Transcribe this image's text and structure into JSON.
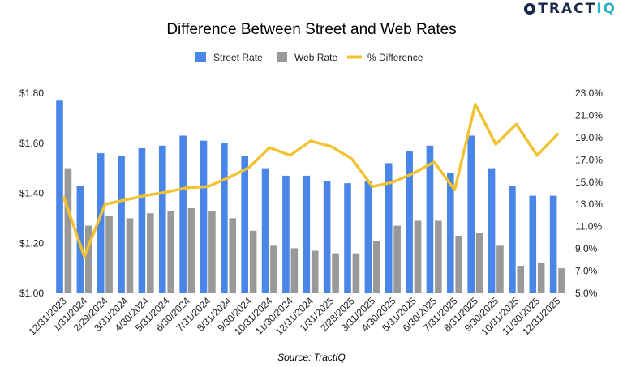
{
  "brand": {
    "name_main": "TRACT",
    "name_accent": "IQ",
    "icon": "tractiq-logo-icon",
    "main_color": "#1b2a4a",
    "accent_color": "#2bb0c9"
  },
  "chart_data": {
    "type": "bar",
    "title": "Difference Between Street and Web Rates",
    "source": "Source: TractIQ",
    "categories": [
      "12/31/2023",
      "1/31/2024",
      "2/29/2024",
      "3/31/2024",
      "4/30/2024",
      "5/31/2024",
      "6/30/2024",
      "7/31/2024",
      "8/31/2024",
      "9/30/2024",
      "10/31/2024",
      "11/30/2024",
      "12/31/2024",
      "1/31/2025",
      "2/28/2025",
      "3/31/2025",
      "4/30/2025",
      "5/31/2025",
      "6/30/2025",
      "7/31/2025",
      "8/31/2025",
      "9/30/2025",
      "10/31/2025",
      "11/30/2025",
      "12/31/2025"
    ],
    "series": [
      {
        "name": "Street Rate",
        "kind": "bar",
        "axis": "left",
        "color": "#4a86e8",
        "values": [
          1.77,
          1.43,
          1.56,
          1.55,
          1.58,
          1.59,
          1.63,
          1.61,
          1.6,
          1.55,
          1.5,
          1.47,
          1.47,
          1.45,
          1.44,
          1.45,
          1.52,
          1.57,
          1.59,
          1.48,
          1.63,
          1.5,
          1.43,
          1.39,
          1.39
        ]
      },
      {
        "name": "Web Rate",
        "kind": "bar",
        "axis": "left",
        "color": "#999999",
        "values": [
          1.5,
          1.27,
          1.31,
          1.3,
          1.32,
          1.33,
          1.34,
          1.33,
          1.3,
          1.25,
          1.19,
          1.18,
          1.17,
          1.16,
          1.16,
          1.21,
          1.27,
          1.29,
          1.29,
          1.23,
          1.24,
          1.19,
          1.11,
          1.12,
          1.1
        ]
      },
      {
        "name": "% Difference",
        "kind": "line",
        "axis": "right",
        "color": "#f1c232",
        "values": [
          13.6,
          8.3,
          13.0,
          13.4,
          13.8,
          14.1,
          14.5,
          14.6,
          15.4,
          16.3,
          18.1,
          17.4,
          18.7,
          18.2,
          17.1,
          14.6,
          15.0,
          15.8,
          16.8,
          14.3,
          22.0,
          18.4,
          20.2,
          17.4,
          19.3
        ]
      }
    ],
    "y_left": {
      "min": 1.0,
      "max": 1.8,
      "ticks": [
        1.0,
        1.2,
        1.4,
        1.6,
        1.8
      ],
      "tick_labels": [
        "$1.00",
        "$1.20",
        "$1.40",
        "$1.60",
        "$1.80"
      ]
    },
    "y_right": {
      "min": 5,
      "max": 23,
      "ticks": [
        5,
        7,
        9,
        11,
        13,
        15,
        17,
        19,
        21,
        23
      ],
      "tick_labels": [
        "5.0%",
        "7.0%",
        "9.0%",
        "11.0%",
        "13.0%",
        "15.0%",
        "17.0%",
        "19.0%",
        "21.0%",
        "23.0%"
      ]
    },
    "legend": "top-center",
    "grid": false
  }
}
